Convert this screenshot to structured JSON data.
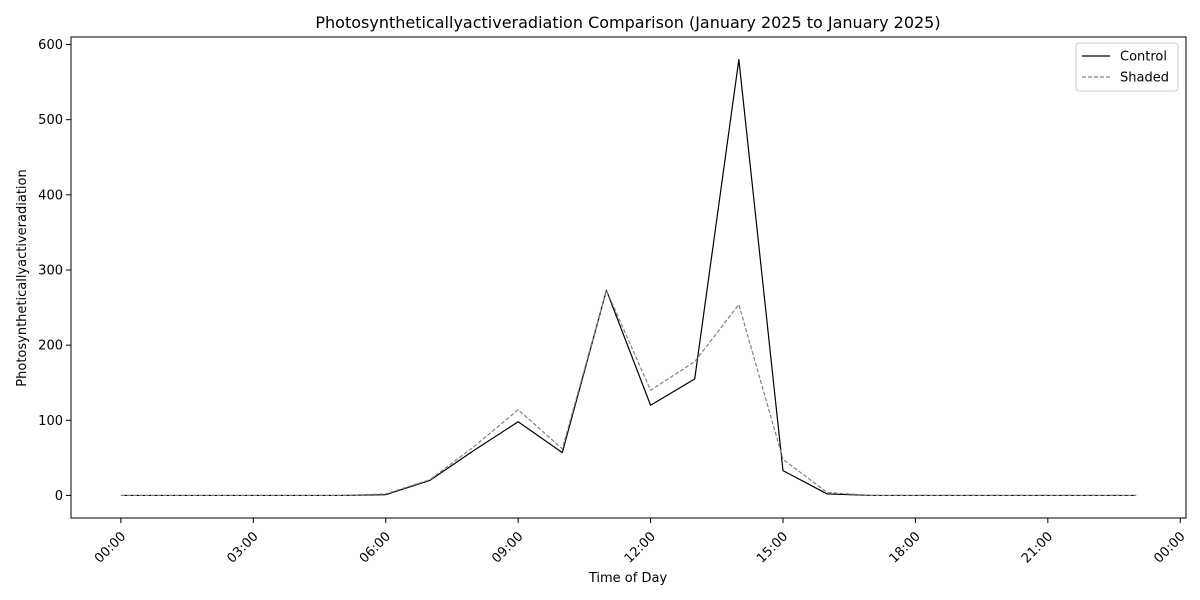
{
  "chart_data": {
    "type": "line",
    "title": "Photosyntheticallyactiveradiation Comparison (January 2025 to January 2025)",
    "xlabel": "Time of Day",
    "ylabel": "Photosyntheticallyactiveradiation",
    "x_ticks": [
      "00:00",
      "03:00",
      "06:00",
      "09:00",
      "12:00",
      "15:00",
      "18:00",
      "21:00",
      "00:00"
    ],
    "xlim_hours": [
      -1.13,
      24.13
    ],
    "ylim": [
      -30,
      610
    ],
    "y_ticks": [
      0,
      100,
      200,
      300,
      400,
      500,
      600
    ],
    "legend_position": "top-right",
    "grid": false,
    "x": [
      "00:00",
      "01:00",
      "02:00",
      "03:00",
      "04:00",
      "05:00",
      "06:00",
      "07:00",
      "08:00",
      "09:00",
      "10:00",
      "11:00",
      "12:00",
      "13:00",
      "14:00",
      "15:00",
      "16:00",
      "17:00",
      "18:00",
      "19:00",
      "20:00",
      "21:00",
      "22:00",
      "23:00"
    ],
    "series": [
      {
        "name": "Control",
        "color": "#000000",
        "dash": "solid",
        "values": [
          0,
          0,
          0,
          0,
          0,
          0,
          1,
          20,
          60,
          98,
          57,
          273,
          120,
          155,
          580,
          33,
          2,
          0,
          0,
          0,
          0,
          0,
          0,
          0
        ]
      },
      {
        "name": "Shaded",
        "color": "#808080",
        "dash": "dashed",
        "values": [
          0,
          0,
          0,
          0,
          0,
          0,
          2,
          21,
          65,
          114,
          62,
          273,
          140,
          178,
          254,
          48,
          4,
          0,
          0,
          0,
          0,
          0,
          0,
          0
        ]
      }
    ]
  }
}
